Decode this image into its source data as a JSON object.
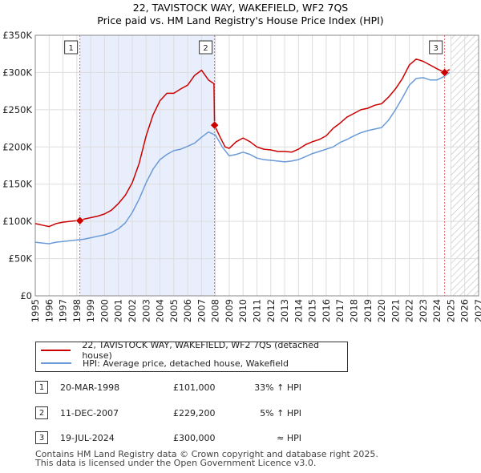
{
  "title_line1": "22, TAVISTOCK WAY, WAKEFIELD, WF2 7QS",
  "title_line2": "Price paid vs. HM Land Registry's House Price Index (HPI)",
  "colors": {
    "property": "#cc0000",
    "hpi": "#6a9bd8",
    "shade": "#e8eefb",
    "marker_line": "#dd6666"
  },
  "chart_data": {
    "type": "line",
    "title": "22, TAVISTOCK WAY, WAKEFIELD, WF2 7QS",
    "subtitle": "Price paid vs. HM Land Registry's House Price Index (HPI)",
    "xlabel": "",
    "ylabel": "",
    "xlim": [
      1995,
      2027
    ],
    "ylim": [
      0,
      350000
    ],
    "xticks": [
      1995,
      1996,
      1997,
      1998,
      1999,
      2000,
      2001,
      2002,
      2003,
      2004,
      2005,
      2006,
      2007,
      2008,
      2009,
      2010,
      2011,
      2012,
      2013,
      2014,
      2015,
      2016,
      2017,
      2018,
      2019,
      2020,
      2021,
      2022,
      2023,
      2024,
      2025,
      2026,
      2027
    ],
    "yticks": [
      0,
      50000,
      100000,
      150000,
      200000,
      250000,
      300000,
      350000
    ],
    "ytick_labels": [
      "£0",
      "£50K",
      "£100K",
      "£150K",
      "£200K",
      "£250K",
      "£300K",
      "£350K"
    ],
    "grid": true,
    "shaded_region": [
      1998.22,
      2007.94
    ],
    "future_hatch_from": 2025.0,
    "series": [
      {
        "name": "22, TAVISTOCK WAY, WAKEFIELD, WF2 7QS (detached house)",
        "x": [
          1995.0,
          1995.5,
          1996.0,
          1996.5,
          1997.0,
          1997.5,
          1998.0,
          1998.22,
          1998.5,
          1999.0,
          1999.5,
          2000.0,
          2000.5,
          2001.0,
          2001.5,
          2002.0,
          2002.5,
          2003.0,
          2003.5,
          2004.0,
          2004.5,
          2005.0,
          2005.5,
          2006.0,
          2006.5,
          2007.0,
          2007.5,
          2007.9,
          2007.94,
          2008.3,
          2008.7,
          2009.0,
          2009.5,
          2010.0,
          2010.5,
          2011.0,
          2011.5,
          2012.0,
          2012.5,
          2013.0,
          2013.5,
          2014.0,
          2014.5,
          2015.0,
          2015.5,
          2016.0,
          2016.5,
          2017.0,
          2017.5,
          2018.0,
          2018.5,
          2019.0,
          2019.5,
          2020.0,
          2020.5,
          2021.0,
          2021.5,
          2022.0,
          2022.5,
          2023.0,
          2023.5,
          2024.0,
          2024.55,
          2024.9
        ],
        "values": [
          97000,
          95000,
          93000,
          97000,
          99000,
          100000,
          101000,
          101000,
          103000,
          105000,
          107000,
          110000,
          115000,
          124000,
          135000,
          152000,
          178000,
          215000,
          243000,
          262000,
          272000,
          272000,
          278000,
          283000,
          296000,
          303000,
          290000,
          285000,
          229200,
          215000,
          200000,
          198000,
          207000,
          212000,
          207000,
          200000,
          197000,
          196000,
          194000,
          194000,
          193000,
          197000,
          203000,
          207000,
          210000,
          215000,
          225000,
          232000,
          240000,
          245000,
          250000,
          252000,
          256000,
          258000,
          267000,
          278000,
          292000,
          310000,
          318000,
          315000,
          310000,
          305000,
          300000,
          304000
        ]
      },
      {
        "name": "HPI: Average price, detached house, Wakefield",
        "x": [
          1995.0,
          1995.5,
          1996.0,
          1996.5,
          1997.0,
          1997.5,
          1998.0,
          1998.5,
          1999.0,
          1999.5,
          2000.0,
          2000.5,
          2001.0,
          2001.5,
          2002.0,
          2002.5,
          2003.0,
          2003.5,
          2004.0,
          2004.5,
          2005.0,
          2005.5,
          2006.0,
          2006.5,
          2007.0,
          2007.5,
          2008.0,
          2008.5,
          2009.0,
          2009.5,
          2010.0,
          2010.5,
          2011.0,
          2011.5,
          2012.0,
          2012.5,
          2013.0,
          2013.5,
          2014.0,
          2014.5,
          2015.0,
          2015.5,
          2016.0,
          2016.5,
          2017.0,
          2017.5,
          2018.0,
          2018.5,
          2019.0,
          2019.5,
          2020.0,
          2020.5,
          2021.0,
          2021.5,
          2022.0,
          2022.5,
          2023.0,
          2023.5,
          2024.0,
          2024.55,
          2024.9
        ],
        "values": [
          72000,
          71000,
          70000,
          72000,
          73000,
          74000,
          75000,
          76000,
          78000,
          80000,
          82000,
          85000,
          90000,
          98000,
          112000,
          130000,
          152000,
          170000,
          183000,
          190000,
          195000,
          197000,
          201000,
          205000,
          213000,
          220000,
          216000,
          200000,
          188000,
          190000,
          193000,
          190000,
          185000,
          183000,
          182000,
          181000,
          180000,
          181000,
          183000,
          187000,
          191000,
          194000,
          197000,
          200000,
          206000,
          210000,
          215000,
          219000,
          222000,
          224000,
          226000,
          236000,
          250000,
          266000,
          283000,
          292000,
          293000,
          290000,
          290000,
          295000,
          300000
        ]
      }
    ],
    "sales": [
      {
        "label": "1",
        "x": 1998.22,
        "value": 101000
      },
      {
        "label": "2",
        "x": 2007.94,
        "value": 229200
      },
      {
        "label": "3",
        "x": 2024.55,
        "value": 300000
      }
    ]
  },
  "legend": [
    {
      "label": "22, TAVISTOCK WAY, WAKEFIELD, WF2 7QS (detached house)",
      "color": "#cc0000"
    },
    {
      "label": "HPI: Average price, detached house, Wakefield",
      "color": "#6a9bd8"
    }
  ],
  "table": [
    {
      "num": "1",
      "date": "20-MAR-1998",
      "price": "£101,000",
      "hpi": "33% ↑ HPI"
    },
    {
      "num": "2",
      "date": "11-DEC-2007",
      "price": "£229,200",
      "hpi": "5% ↑ HPI"
    },
    {
      "num": "3",
      "date": "19-JUL-2024",
      "price": "£300,000",
      "hpi": "≈ HPI"
    }
  ],
  "footer_line1": "Contains HM Land Registry data © Crown copyright and database right 2025.",
  "footer_line2": "This data is licensed under the Open Government Licence v3.0."
}
